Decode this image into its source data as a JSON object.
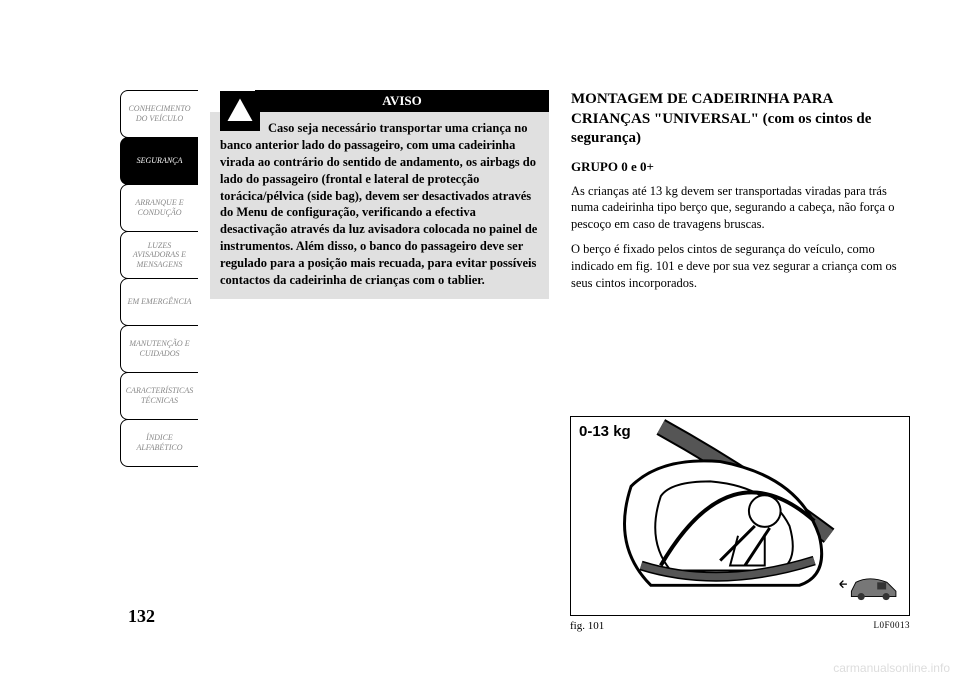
{
  "sidebar": {
    "tabs": [
      {
        "label": "CONHECIMENTO\nDO VEÍCULO",
        "active": false
      },
      {
        "label": "SEGURANÇA",
        "active": true
      },
      {
        "label": "ARRANQUE E\nCONDUÇÃO",
        "active": false
      },
      {
        "label": "LUZES\nAVISADORAS E\nMENSAGENS",
        "active": false
      },
      {
        "label": "EM EMERGÊNCIA",
        "active": false
      },
      {
        "label": "MANUTENÇÃO E\nCUIDADOS",
        "active": false
      },
      {
        "label": "CARACTERÍSTICAS\nTÉCNICAS",
        "active": false
      },
      {
        "label": "ÍNDICE\nALFABÉTICO",
        "active": false
      }
    ]
  },
  "page_number": "132",
  "warning": {
    "header": "AVISO",
    "text": "Caso seja necessário transportar uma criança no banco anterior lado do passageiro, com uma cadeirinha virada ao contrário do sentido de andamento, os airbags do lado do passageiro (frontal e lateral de protecção torácica/pélvica (side bag), devem ser desactivados através do Menu de configuração, verificando a efectiva desactivação através da luz avisadora colocada no painel de instrumentos. Além disso, o banco do passageiro deve ser regulado para a posição mais recuada, para evitar possíveis contactos da cadeirinha de crianças com o tablier."
  },
  "heading": "MONTAGEM DE CADEIRINHA PARA CRIANÇAS \"UNIVERSAL\" (com os cintos de segurança)",
  "subheading": "GRUPO 0 e 0+",
  "paragraphs": [
    "As crianças até 13 kg devem ser transportadas viradas para trás numa cadeirinha tipo berço que, segurando a cabeça, não força o pescoço em caso de travagens bruscas.",
    "O berço é fixado pelos cintos de segurança do veículo, como indicado em fig. 101 e deve por sua vez segurar a criança com os seus cintos incorporados."
  ],
  "figure": {
    "label": "0-13 kg",
    "caption": "fig. 101",
    "id": "L0F0013"
  },
  "colors": {
    "page_bg": "#ffffff",
    "text": "#000000",
    "tab_inactive_text": "#888888",
    "tab_active_bg": "#000000",
    "tab_active_text": "#ffffff",
    "warning_bg": "#e0e0e0",
    "warning_header_bg": "#000000",
    "warning_header_text": "#ffffff",
    "watermark": "#dddddd"
  },
  "watermark": "carmanualsonline.info"
}
